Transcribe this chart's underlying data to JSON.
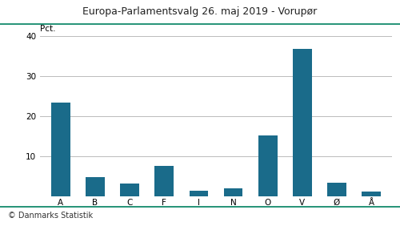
{
  "title": "Europa-Parlamentsvalg 26. maj 2019 - Vorupør",
  "categories": [
    "A",
    "B",
    "C",
    "F",
    "I",
    "N",
    "O",
    "V",
    "Ø",
    "Å"
  ],
  "values": [
    23.5,
    4.8,
    3.3,
    7.7,
    1.5,
    2.1,
    15.3,
    36.8,
    3.5,
    1.2
  ],
  "bar_color": "#1a6b8a",
  "ylabel": "Pct.",
  "ylim": [
    0,
    40
  ],
  "yticks": [
    10,
    20,
    30,
    40
  ],
  "footer": "© Danmarks Statistik",
  "title_color": "#222222",
  "line_color": "#008060",
  "background_color": "#ffffff",
  "grid_color": "#bbbbbb",
  "title_fontsize": 9,
  "tick_fontsize": 7.5,
  "footer_fontsize": 7
}
